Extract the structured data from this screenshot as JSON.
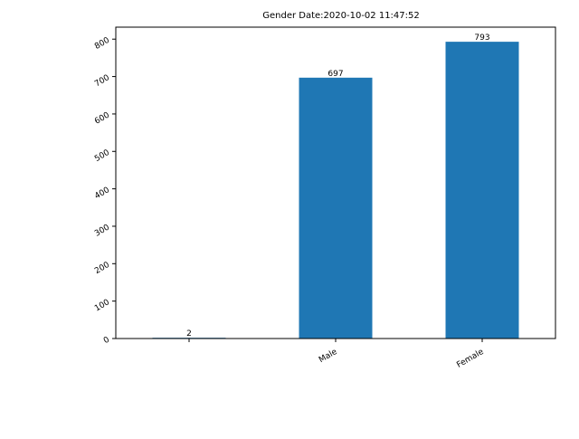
{
  "chart_data": {
    "type": "bar",
    "title": "Gender  Date:2020-10-02 11:47:52",
    "xlabel": "",
    "ylabel": "",
    "categories": [
      "",
      "Male",
      "Female"
    ],
    "values": [
      2,
      697,
      793
    ],
    "yticks": [
      0,
      100,
      200,
      300,
      400,
      500,
      600,
      700,
      800
    ],
    "ylim": [
      0,
      832
    ],
    "bar_color": "#1f77b4",
    "grid": false,
    "legend": "none"
  }
}
